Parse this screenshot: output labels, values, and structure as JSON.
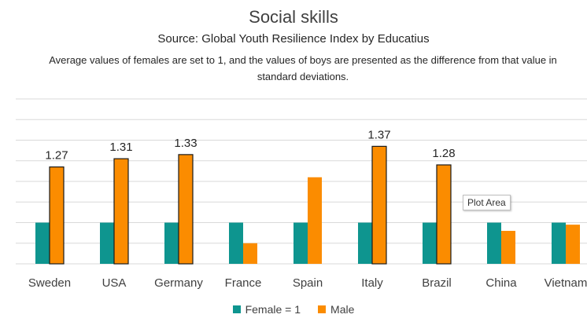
{
  "chart_data": {
    "type": "bar",
    "title": "Social skills",
    "subtitle": "Source: Global Youth Resilience Index by Educatius",
    "note": "Average values of females are set to 1, and the values of boys are presented as the difference from that value in standard deviations.",
    "categories": [
      "Sweden",
      "USA",
      "Germany",
      "France",
      "Spain",
      "Italy",
      "Brazil",
      "China",
      "Vietnam"
    ],
    "series": [
      {
        "name": "Female = 1",
        "color": "#0e958f",
        "values": [
          1,
          1,
          1,
          1,
          1,
          1,
          1,
          1,
          1
        ]
      },
      {
        "name": "Male",
        "color": "#fb8c00",
        "values": [
          1.27,
          1.31,
          1.33,
          0.9,
          1.22,
          1.37,
          1.28,
          0.96,
          0.99
        ],
        "labels": [
          "1.27",
          "1.31",
          "1.33",
          "",
          "",
          "1.37",
          "1.28",
          "",
          ""
        ],
        "highlighted": [
          true,
          true,
          true,
          false,
          false,
          true,
          true,
          false,
          false
        ]
      }
    ],
    "ylim": [
      0.8,
      1.6
    ],
    "grid": true,
    "legend": "bottom"
  },
  "tooltip": "Plot Area"
}
